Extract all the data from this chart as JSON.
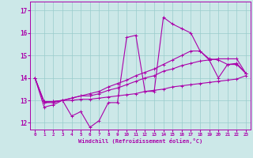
{
  "xlabel": "Windchill (Refroidissement éolien,°C)",
  "ylabel": "",
  "xlim": [
    -0.5,
    23.5
  ],
  "ylim": [
    11.7,
    17.4
  ],
  "yticks": [
    12,
    13,
    14,
    15,
    16,
    17
  ],
  "xticks": [
    0,
    1,
    2,
    3,
    4,
    5,
    6,
    7,
    8,
    9,
    10,
    11,
    12,
    13,
    14,
    15,
    16,
    17,
    18,
    19,
    20,
    21,
    22,
    23
  ],
  "bg_color": "#cce8e8",
  "line_color": "#aa00aa",
  "grid_color": "#99cccc",
  "lines": [
    [
      14.0,
      12.7,
      12.8,
      13.0,
      12.3,
      12.5,
      11.8,
      12.1,
      12.9,
      12.9,
      15.8,
      15.9,
      13.4,
      13.4,
      16.7,
      16.4,
      16.2,
      16.0,
      15.2,
      14.8,
      14.0,
      14.6,
      14.6,
      14.2
    ],
    [
      14.0,
      12.9,
      12.9,
      13.0,
      13.0,
      13.05,
      13.05,
      13.1,
      13.15,
      13.2,
      13.25,
      13.3,
      13.4,
      13.45,
      13.5,
      13.6,
      13.65,
      13.7,
      13.75,
      13.8,
      13.85,
      13.9,
      13.95,
      14.1
    ],
    [
      14.0,
      12.9,
      12.95,
      13.0,
      13.1,
      13.2,
      13.2,
      13.3,
      13.45,
      13.55,
      13.7,
      13.85,
      14.0,
      14.1,
      14.3,
      14.4,
      14.55,
      14.65,
      14.75,
      14.8,
      14.85,
      14.85,
      14.85,
      14.2
    ],
    [
      14.0,
      12.95,
      12.95,
      13.0,
      13.1,
      13.2,
      13.3,
      13.4,
      13.6,
      13.75,
      13.9,
      14.1,
      14.25,
      14.4,
      14.6,
      14.8,
      15.0,
      15.2,
      15.2,
      14.85,
      14.8,
      14.6,
      14.65,
      14.2
    ]
  ]
}
